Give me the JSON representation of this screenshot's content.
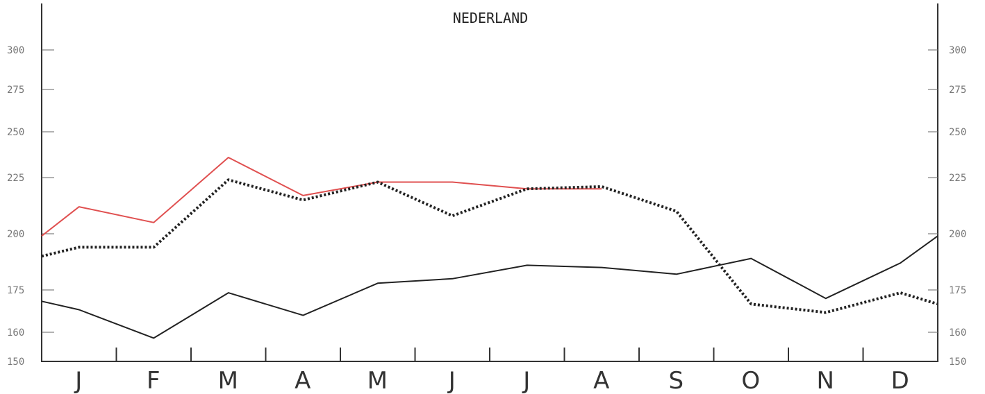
{
  "chart_data": {
    "type": "line",
    "title": "NEDERLAND",
    "categories": [
      "J",
      "F",
      "M",
      "A",
      "M",
      "J",
      "J",
      "A",
      "S",
      "O",
      "N",
      "D"
    ],
    "y_ticks_left": [
      "300",
      "275",
      "250",
      "225",
      "200",
      "175",
      "160",
      "150"
    ],
    "y_ticks_right": [
      "300",
      "275",
      "250",
      "225",
      "200",
      "175",
      "160",
      "150"
    ],
    "y_tick_values": [
      300,
      275,
      250,
      225,
      200,
      175,
      160,
      150
    ],
    "grid": false,
    "series": [
      {
        "color": "#e05050",
        "style": "solid",
        "points": [
          [
            0,
            199
          ],
          [
            0.5,
            212
          ],
          [
            1.5,
            205
          ],
          [
            2.5,
            236
          ],
          [
            3.5,
            217
          ],
          [
            4.5,
            223
          ],
          [
            5.5,
            223
          ],
          [
            6.5,
            220
          ],
          [
            7.5,
            220
          ]
        ]
      },
      {
        "color": "#222222",
        "style": "dotted",
        "points": [
          [
            0,
            190
          ],
          [
            0.5,
            194
          ],
          [
            1.5,
            194
          ],
          [
            2.5,
            224
          ],
          [
            3.5,
            215
          ],
          [
            4.5,
            223
          ],
          [
            5.5,
            208
          ],
          [
            6.5,
            220
          ],
          [
            7.5,
            221
          ],
          [
            8.5,
            210
          ],
          [
            9.5,
            170
          ],
          [
            10.5,
            167
          ],
          [
            11.5,
            174
          ],
          [
            12,
            170
          ]
        ]
      },
      {
        "color": "#222222",
        "style": "solid",
        "points": [
          [
            0,
            171
          ],
          [
            0.5,
            168
          ],
          [
            1.5,
            158
          ],
          [
            2.5,
            174
          ],
          [
            3.5,
            166
          ],
          [
            4.5,
            178
          ],
          [
            5.5,
            180
          ],
          [
            6.5,
            186
          ],
          [
            7.5,
            185
          ],
          [
            8.5,
            182
          ],
          [
            9.5,
            189
          ],
          [
            10.5,
            172
          ],
          [
            11.5,
            187
          ],
          [
            12,
            199
          ]
        ]
      }
    ]
  }
}
